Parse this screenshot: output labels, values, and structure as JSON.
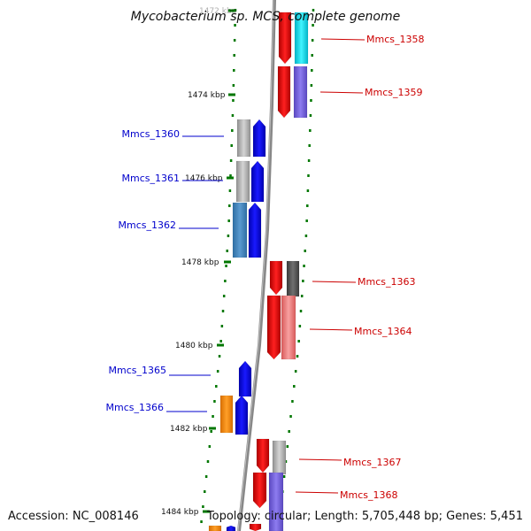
{
  "title": "Mycobacterium sp. MCS, complete genome",
  "footer": {
    "accession": "Accession: NC_008146",
    "topology": "Topology: circular; Length: 5,705,448 bp; Genes: 5,451"
  },
  "colors": {
    "forward_label": "#cc0000",
    "reverse_label": "#0000cc",
    "tick": "#007700",
    "backbone": "#888888"
  },
  "ticks": [
    {
      "label": "1472 kbp",
      "faded": true
    },
    {
      "label": "1474 kbp",
      "faded": false
    },
    {
      "label": "1476 kbp",
      "faded": false
    },
    {
      "label": "1478 kbp",
      "faded": false
    },
    {
      "label": "1480 kbp",
      "faded": false
    },
    {
      "label": "1482 kbp",
      "faded": false
    },
    {
      "label": "1484 kbp",
      "faded": false
    }
  ],
  "genes": [
    {
      "name": "Mmcs_1358",
      "strand": "forward"
    },
    {
      "name": "Mmcs_1359",
      "strand": "forward"
    },
    {
      "name": "Mmcs_1360",
      "strand": "reverse"
    },
    {
      "name": "Mmcs_1361",
      "strand": "reverse"
    },
    {
      "name": "Mmcs_1362",
      "strand": "reverse"
    },
    {
      "name": "Mmcs_1363",
      "strand": "forward"
    },
    {
      "name": "Mmcs_1364",
      "strand": "forward"
    },
    {
      "name": "Mmcs_1365",
      "strand": "reverse"
    },
    {
      "name": "Mmcs_1366",
      "strand": "reverse"
    },
    {
      "name": "Mmcs_1367",
      "strand": "forward"
    },
    {
      "name": "Mmcs_1368",
      "strand": "forward"
    }
  ]
}
